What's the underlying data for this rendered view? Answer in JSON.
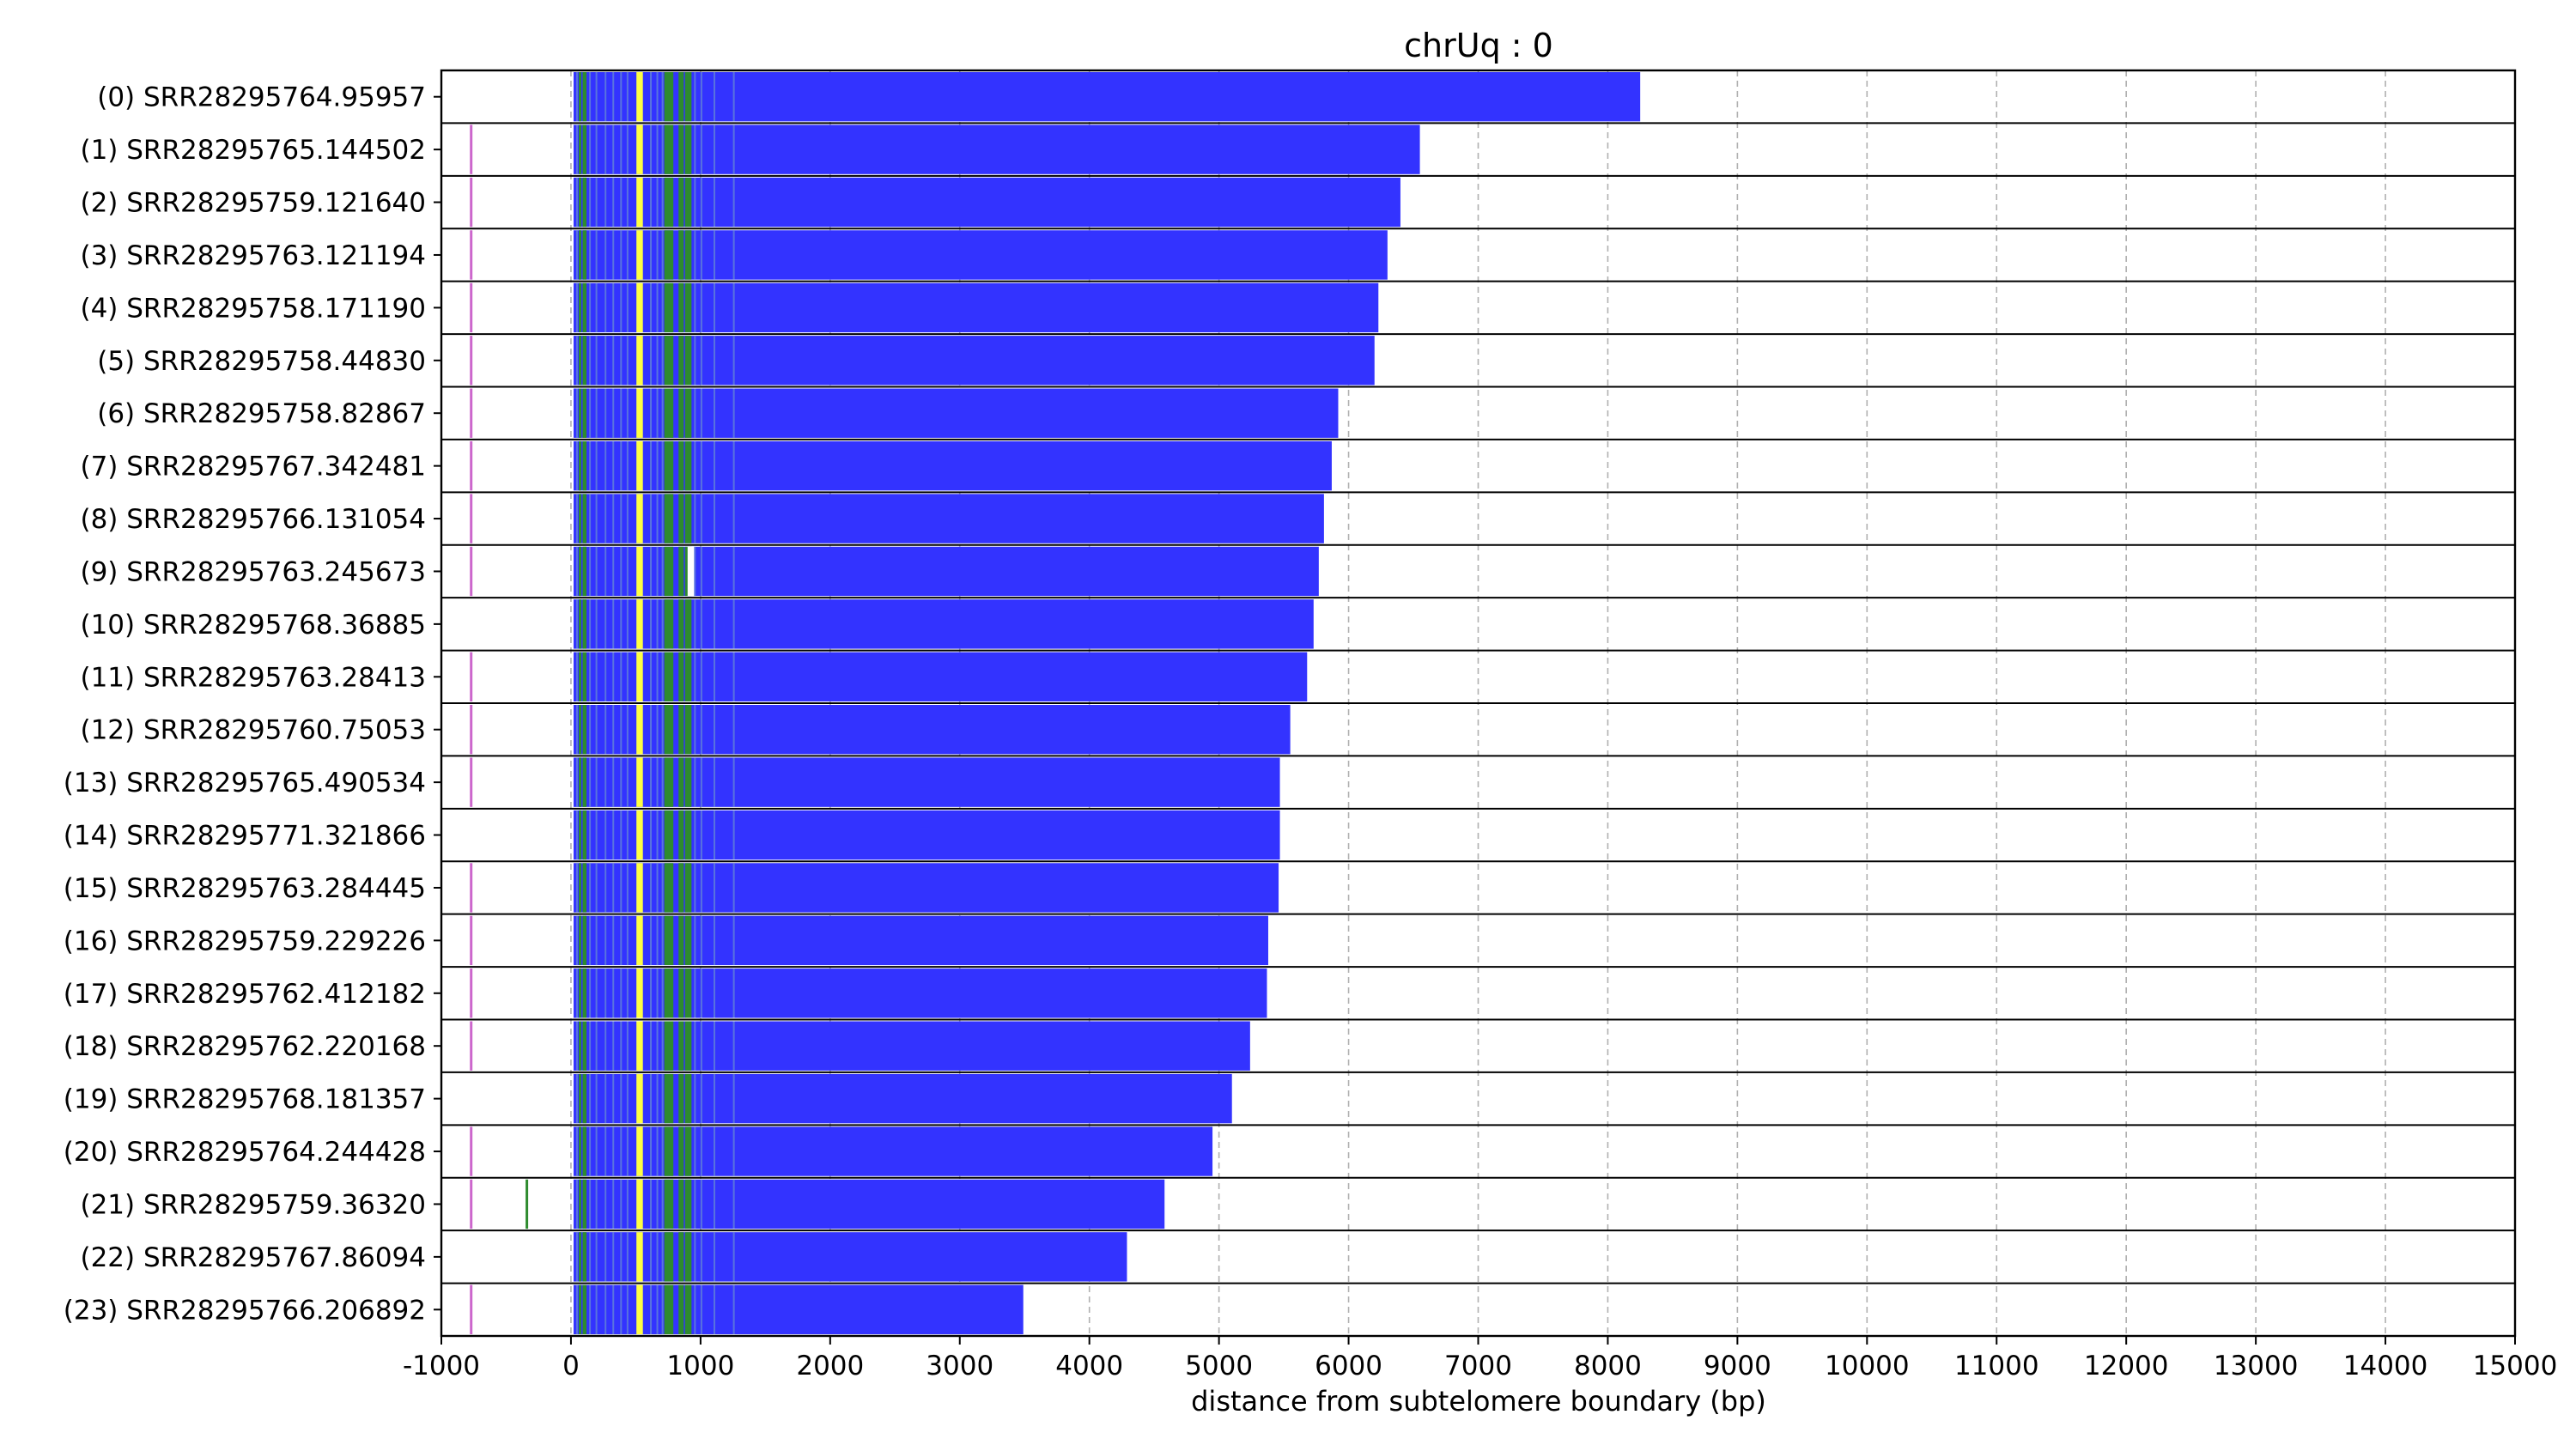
{
  "chart_data": {
    "type": "bar",
    "title": "chrUq : 0",
    "xlabel": "distance from subtelomere boundary (bp)",
    "ylabel": "",
    "xlim": [
      -1000,
      15000
    ],
    "xticks": [
      -1000,
      0,
      1000,
      2000,
      3000,
      4000,
      5000,
      6000,
      7000,
      8000,
      9000,
      10000,
      11000,
      12000,
      13000,
      14000,
      15000
    ],
    "grid": "vertical dashed",
    "categories": [
      "(0) SRR28295764.95957",
      "(1) SRR28295765.144502",
      "(2) SRR28295759.121640",
      "(3) SRR28295763.121194",
      "(4) SRR28295758.171190",
      "(5) SRR28295758.44830",
      "(6) SRR28295758.82867",
      "(7) SRR28295767.342481",
      "(8) SRR28295766.131054",
      "(9) SRR28295763.245673",
      "(10) SRR28295768.36885",
      "(11) SRR28295763.28413",
      "(12) SRR28295760.75053",
      "(13) SRR28295765.490534",
      "(14) SRR28295771.321866",
      "(15) SRR28295763.284445",
      "(16) SRR28295759.229226",
      "(17) SRR28295762.412182",
      "(18) SRR28295762.220168",
      "(19) SRR28295768.181357",
      "(20) SRR28295764.244428",
      "(21) SRR28295759.36320",
      "(22) SRR28295767.86094",
      "(23) SRR28295766.206892"
    ],
    "read_start": [
      0,
      -780,
      -780,
      -780,
      -780,
      -780,
      -780,
      -780,
      -780,
      -780,
      0,
      -780,
      -780,
      -780,
      0,
      -780,
      -780,
      -780,
      -780,
      0,
      -780,
      -780,
      0,
      -780
    ],
    "read_end": [
      8250,
      6550,
      6400,
      6300,
      6230,
      6200,
      5920,
      5870,
      5810,
      5770,
      5730,
      5680,
      5550,
      5470,
      5470,
      5460,
      5380,
      5370,
      5240,
      5100,
      4950,
      4580,
      4290,
      3490
    ],
    "colors": {
      "telomere_repeat": "#3333ff",
      "subtelomere_green": "#2e8b2e",
      "subtelomere_yellow": "#ffff44",
      "read_start_marker": "#cc66cc",
      "gap": "#ffffff",
      "grid": "#b0b0b0"
    }
  }
}
